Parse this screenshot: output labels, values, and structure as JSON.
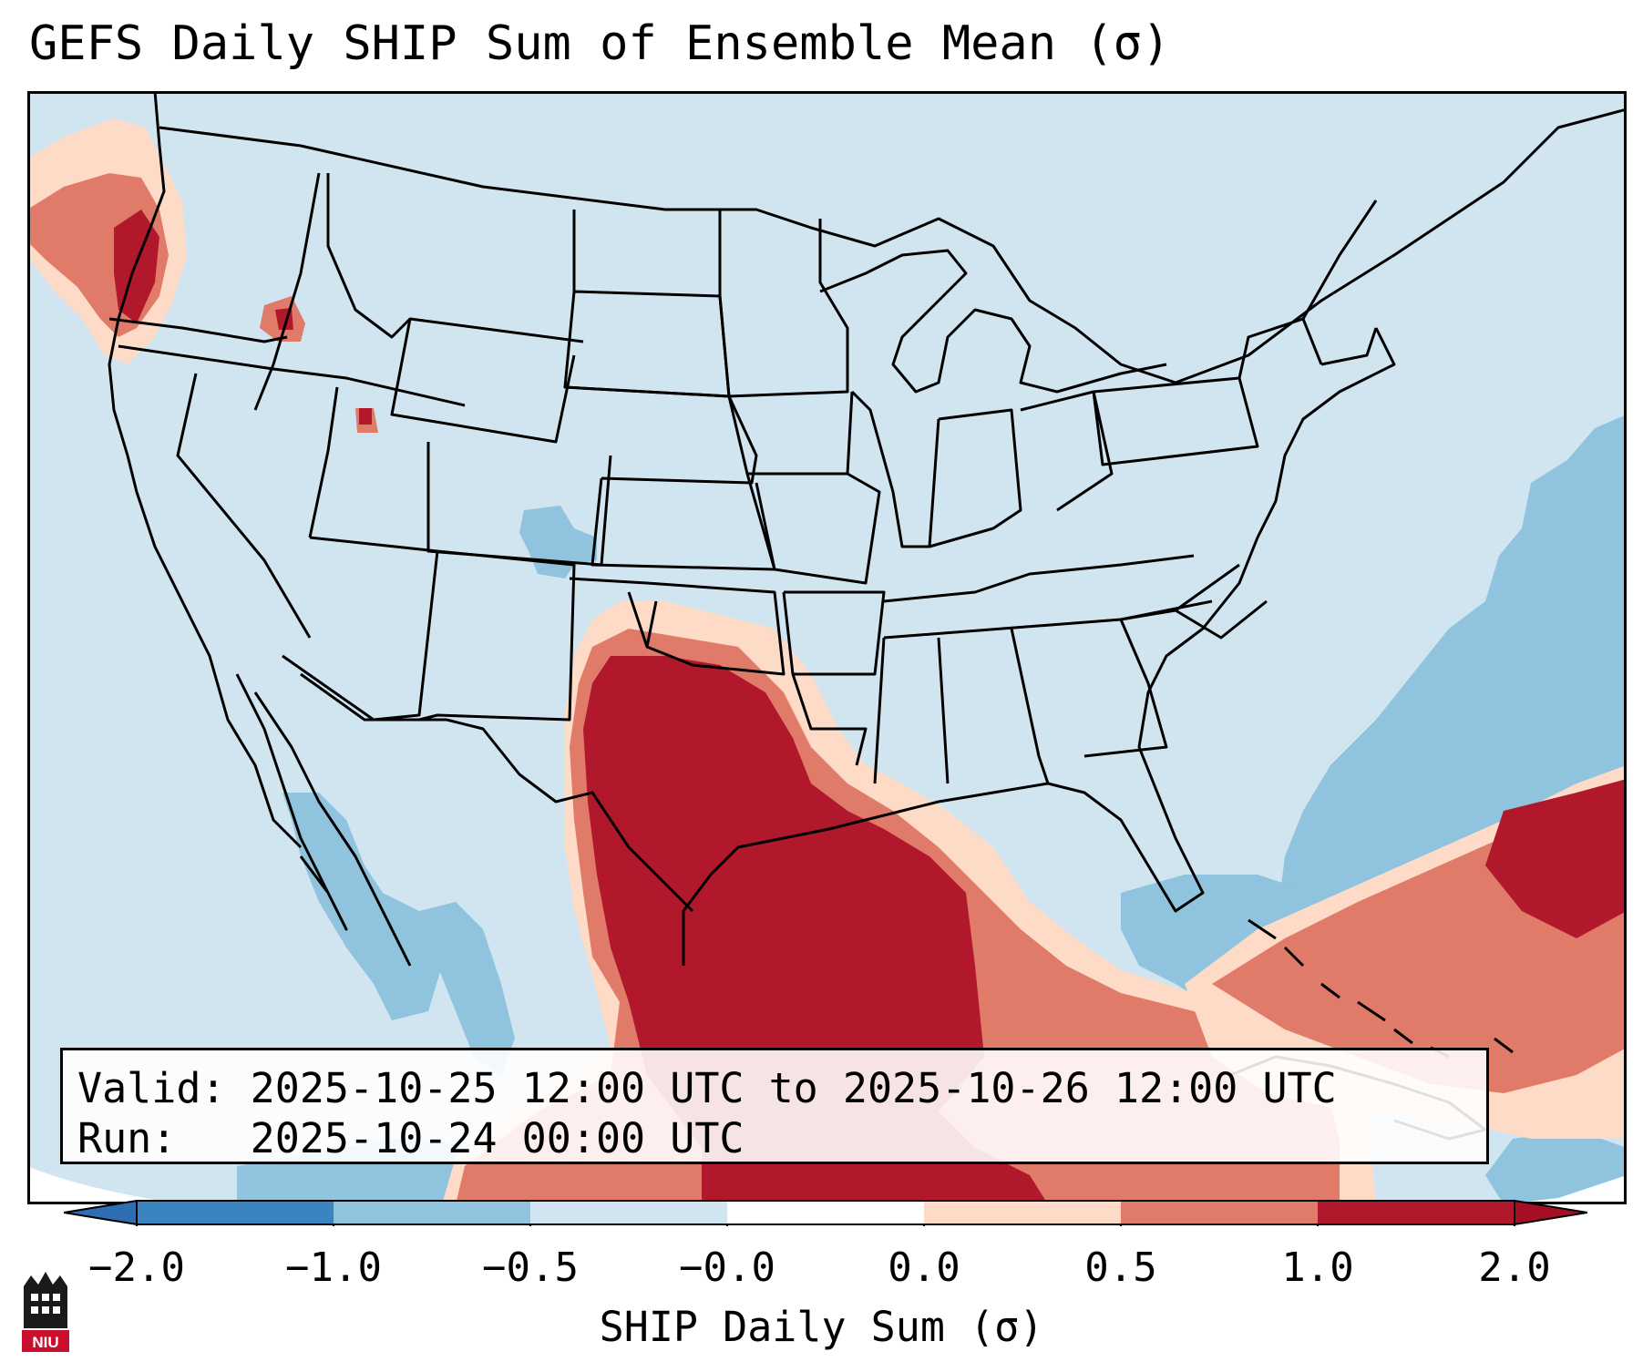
{
  "title": "GEFS Daily SHIP Sum of Ensemble Mean (σ)",
  "info": {
    "valid_label": "Valid:",
    "valid_value": "2025-10-25 12:00 UTC to 2025-10-26 12:00 UTC",
    "run_label": "Run:",
    "run_value": "2025-10-24 00:00 UTC"
  },
  "colorbar": {
    "label": "SHIP Daily Sum (σ)",
    "ticks": [
      "−2.0",
      "−1.0",
      "−0.5",
      "−0.0",
      "0.0",
      "0.5",
      "1.0",
      "2.0"
    ],
    "colors": [
      "#3b84c2",
      "#90c3de",
      "#d1e5f0",
      "#ffffff",
      "#fddbc7",
      "#e07b6a",
      "#b2182b"
    ]
  },
  "map": {
    "background_color": "#d1e5f0",
    "region": "Contiguous United States, northern Mexico, Gulf of Mexico, Caribbean"
  },
  "logo": {
    "text": "NIU"
  }
}
